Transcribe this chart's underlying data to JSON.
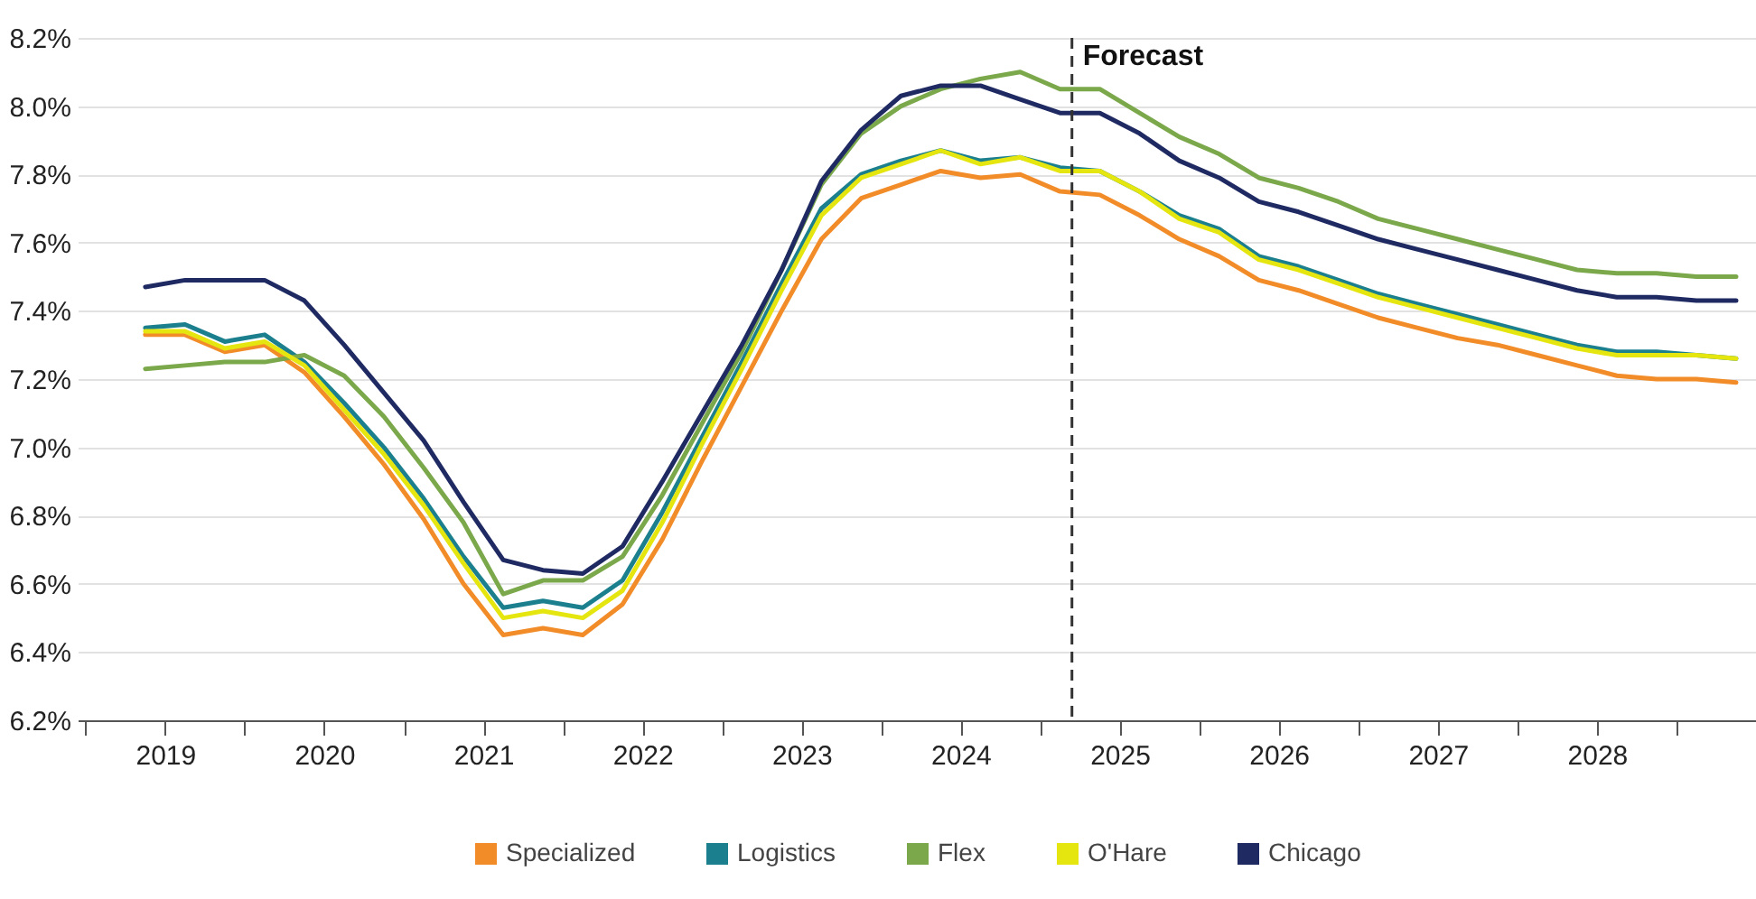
{
  "chart_data": {
    "type": "line",
    "x": [
      2019.375,
      2019.625,
      2019.875,
      2020.125,
      2020.375,
      2020.625,
      2020.875,
      2021.125,
      2021.375,
      2021.625,
      2021.875,
      2022.125,
      2022.375,
      2022.625,
      2022.875,
      2023.125,
      2023.375,
      2023.625,
      2023.875,
      2024.125,
      2024.375,
      2024.625,
      2024.875,
      2025.125,
      2025.375,
      2025.625,
      2025.875,
      2026.125,
      2026.375,
      2026.625,
      2026.875,
      2027.125,
      2027.375,
      2027.625,
      2027.875,
      2028.125,
      2028.375,
      2028.625,
      2028.875,
      2029.125,
      2029.375
    ],
    "series": [
      {
        "name": "Specialized",
        "color": "#f28c28",
        "values": [
          7.33,
          7.33,
          7.28,
          7.3,
          7.22,
          7.09,
          6.95,
          6.79,
          6.6,
          6.45,
          6.47,
          6.45,
          6.54,
          6.73,
          6.96,
          7.18,
          7.4,
          7.61,
          7.73,
          7.77,
          7.81,
          7.79,
          7.8,
          7.75,
          7.74,
          7.68,
          7.61,
          7.56,
          7.49,
          7.46,
          7.42,
          7.38,
          7.35,
          7.32,
          7.3,
          7.27,
          7.24,
          7.21,
          7.2,
          7.2,
          7.19
        ]
      },
      {
        "name": "Logistics",
        "color": "#1b7f8e",
        "values": [
          7.35,
          7.36,
          7.31,
          7.33,
          7.25,
          7.13,
          7.0,
          6.85,
          6.68,
          6.53,
          6.55,
          6.53,
          6.61,
          6.81,
          7.03,
          7.25,
          7.48,
          7.7,
          7.8,
          7.84,
          7.87,
          7.84,
          7.85,
          7.82,
          7.81,
          7.75,
          7.68,
          7.64,
          7.56,
          7.53,
          7.49,
          7.45,
          7.42,
          7.39,
          7.36,
          7.33,
          7.3,
          7.28,
          7.28,
          7.27,
          7.26
        ]
      },
      {
        "name": "Flex",
        "color": "#7aa84a",
        "values": [
          7.23,
          7.24,
          7.25,
          7.25,
          7.27,
          7.21,
          7.09,
          6.94,
          6.78,
          6.57,
          6.61,
          6.61,
          6.68,
          6.86,
          7.07,
          7.28,
          7.52,
          7.77,
          7.92,
          8.0,
          8.05,
          8.08,
          8.1,
          8.05,
          8.05,
          7.98,
          7.91,
          7.86,
          7.79,
          7.76,
          7.72,
          7.67,
          7.64,
          7.61,
          7.58,
          7.55,
          7.52,
          7.51,
          7.51,
          7.5,
          7.5
        ]
      },
      {
        "name": "O'Hare",
        "color": "#e5e510",
        "values": [
          7.34,
          7.34,
          7.29,
          7.31,
          7.24,
          7.11,
          6.98,
          6.83,
          6.66,
          6.5,
          6.52,
          6.5,
          6.58,
          6.78,
          7.01,
          7.23,
          7.46,
          7.68,
          7.79,
          7.83,
          7.87,
          7.83,
          7.85,
          7.81,
          7.81,
          7.75,
          7.67,
          7.63,
          7.55,
          7.52,
          7.48,
          7.44,
          7.41,
          7.38,
          7.35,
          7.32,
          7.29,
          7.27,
          7.27,
          7.27,
          7.26
        ]
      },
      {
        "name": "Chicago",
        "color": "#1f2a63",
        "values": [
          7.47,
          7.49,
          7.49,
          7.49,
          7.43,
          7.3,
          7.16,
          7.02,
          6.84,
          6.67,
          6.64,
          6.63,
          6.71,
          6.9,
          7.1,
          7.3,
          7.52,
          7.78,
          7.93,
          8.03,
          8.06,
          8.06,
          8.02,
          7.98,
          7.98,
          7.92,
          7.84,
          7.79,
          7.72,
          7.69,
          7.65,
          7.61,
          7.58,
          7.55,
          7.52,
          7.49,
          7.46,
          7.44,
          7.44,
          7.43,
          7.43
        ]
      }
    ],
    "xlim": [
      2018.95,
      2029.5
    ],
    "xticks": [
      {
        "value": 2019,
        "label": null
      },
      {
        "value": 2019.5,
        "label": "2019"
      },
      {
        "value": 2020,
        "label": null
      },
      {
        "value": 2020.5,
        "label": "2020"
      },
      {
        "value": 2021,
        "label": null
      },
      {
        "value": 2021.5,
        "label": "2021"
      },
      {
        "value": 2022,
        "label": null
      },
      {
        "value": 2022.5,
        "label": "2022"
      },
      {
        "value": 2023,
        "label": null
      },
      {
        "value": 2023.5,
        "label": "2023"
      },
      {
        "value": 2024,
        "label": null
      },
      {
        "value": 2024.5,
        "label": "2024"
      },
      {
        "value": 2025,
        "label": null
      },
      {
        "value": 2025.5,
        "label": "2025"
      },
      {
        "value": 2026,
        "label": null
      },
      {
        "value": 2026.5,
        "label": "2026"
      },
      {
        "value": 2027,
        "label": null
      },
      {
        "value": 2027.5,
        "label": "2027"
      },
      {
        "value": 2028,
        "label": null
      },
      {
        "value": 2028.5,
        "label": "2028"
      },
      {
        "value": 2029,
        "label": null
      }
    ],
    "ylim": [
      6.2,
      8.2
    ],
    "yticks": [
      {
        "value": 6.2,
        "label": "6.2%"
      },
      {
        "value": 6.4,
        "label": "6.4%"
      },
      {
        "value": 6.6,
        "label": "6.6%"
      },
      {
        "value": 6.8,
        "label": "6.8%"
      },
      {
        "value": 7.0,
        "label": "7.0%"
      },
      {
        "value": 7.2,
        "label": "7.2%"
      },
      {
        "value": 7.4,
        "label": "7.4%"
      },
      {
        "value": 7.6,
        "label": "7.6%"
      },
      {
        "value": 7.8,
        "label": "7.8%"
      },
      {
        "value": 8.0,
        "label": "8.0%"
      },
      {
        "value": 8.2,
        "label": "8.2%"
      }
    ],
    "ref_lines": [
      {
        "axis": "x",
        "value": 2025.2,
        "label": "Forecast",
        "color": "#333333",
        "line_style": "dashed"
      }
    ],
    "grid": "y",
    "legend": "bottom",
    "marker": "none",
    "line_style": "solid"
  }
}
